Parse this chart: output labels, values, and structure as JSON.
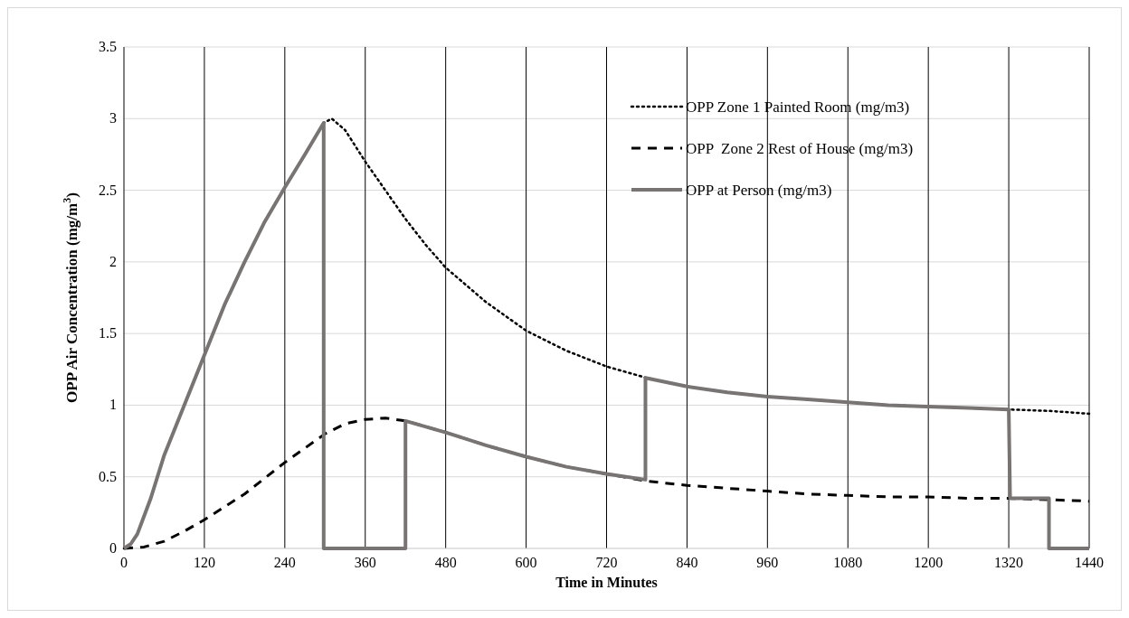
{
  "chart_data": {
    "type": "line",
    "xlabel": "Time in Minutes",
    "ylabel": "OPP Air Concentration (mg/m$^{3}$)",
    "xlim": [
      0,
      1440
    ],
    "xticks": [
      0,
      120,
      240,
      360,
      480,
      600,
      720,
      840,
      960,
      1080,
      1200,
      1320,
      1440
    ],
    "ylim": [
      0,
      3.5
    ],
    "yticks": [
      0,
      0.5,
      1,
      1.5,
      2,
      2.5,
      3,
      3.5
    ],
    "grid": true,
    "legend": "top right",
    "marker": "none",
    "series": [
      {
        "name": "OPP Zone 1 Painted Room (mg/m3)",
        "color": "#000000",
        "line_style": "dotted",
        "x": [
          0,
          10,
          20,
          40,
          60,
          90,
          120,
          150,
          180,
          210,
          240,
          270,
          298,
          310,
          330,
          360,
          390,
          420,
          450,
          480,
          540,
          600,
          660,
          720,
          780,
          840,
          900,
          960,
          1020,
          1080,
          1140,
          1200,
          1260,
          1320,
          1380,
          1440
        ],
        "values": [
          0,
          0.03,
          0.1,
          0.35,
          0.65,
          1.0,
          1.35,
          1.7,
          2.0,
          2.28,
          2.52,
          2.75,
          2.97,
          3.0,
          2.92,
          2.7,
          2.5,
          2.3,
          2.12,
          1.96,
          1.72,
          1.52,
          1.38,
          1.27,
          1.19,
          1.13,
          1.09,
          1.06,
          1.04,
          1.02,
          1.0,
          0.99,
          0.98,
          0.97,
          0.96,
          0.94
        ]
      },
      {
        "name": "OPP  Zone 2 Rest of House (mg/m3)",
        "color": "#000000",
        "line_style": "dashed",
        "x": [
          0,
          30,
          60,
          90,
          120,
          150,
          180,
          210,
          240,
          270,
          300,
          330,
          360,
          390,
          420,
          480,
          540,
          600,
          660,
          720,
          780,
          840,
          900,
          960,
          1020,
          1080,
          1140,
          1200,
          1260,
          1320,
          1380,
          1440
        ],
        "values": [
          0,
          0.01,
          0.05,
          0.12,
          0.2,
          0.29,
          0.38,
          0.49,
          0.6,
          0.7,
          0.8,
          0.87,
          0.9,
          0.91,
          0.89,
          0.81,
          0.72,
          0.64,
          0.57,
          0.52,
          0.47,
          0.44,
          0.42,
          0.4,
          0.38,
          0.37,
          0.36,
          0.36,
          0.35,
          0.35,
          0.34,
          0.33
        ]
      },
      {
        "name": "OPP at Person (mg/m3)",
        "color": "#787474",
        "line_style": "solid",
        "x": [
          0,
          10,
          20,
          40,
          60,
          90,
          120,
          150,
          180,
          210,
          240,
          270,
          298,
          298,
          420,
          420,
          480,
          540,
          600,
          660,
          720,
          778,
          778,
          840,
          900,
          960,
          1020,
          1080,
          1140,
          1200,
          1260,
          1320,
          1322,
          1380,
          1380,
          1440
        ],
        "values": [
          0,
          0.03,
          0.1,
          0.35,
          0.65,
          1.0,
          1.35,
          1.7,
          2.0,
          2.28,
          2.52,
          2.75,
          2.97,
          0,
          0,
          0.89,
          0.81,
          0.72,
          0.64,
          0.57,
          0.52,
          0.48,
          1.19,
          1.13,
          1.09,
          1.06,
          1.04,
          1.02,
          1.0,
          0.99,
          0.98,
          0.97,
          0.35,
          0.35,
          0,
          0
        ]
      }
    ]
  }
}
